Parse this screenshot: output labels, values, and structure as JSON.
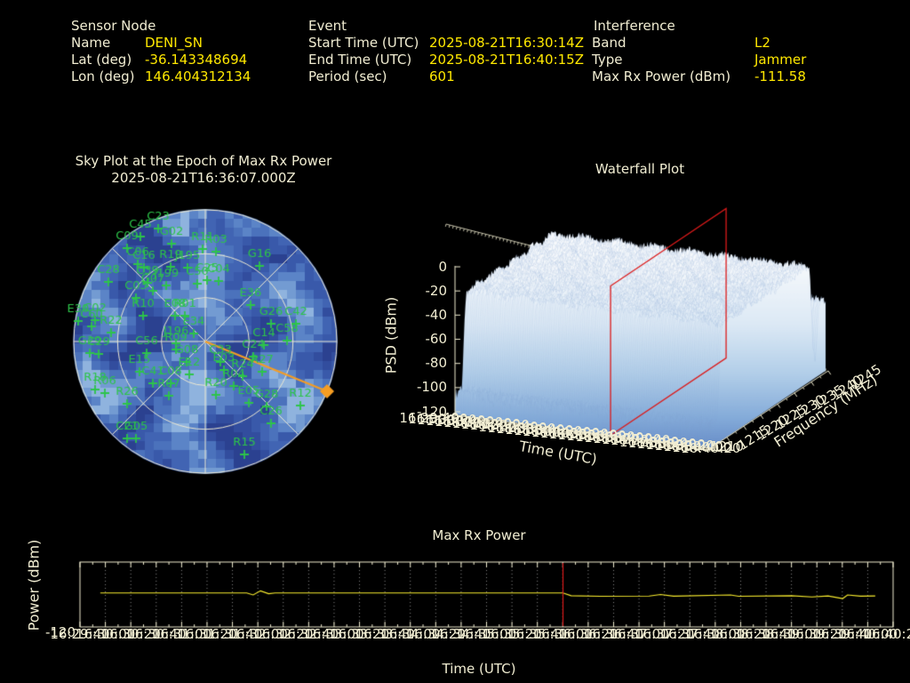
{
  "header": {
    "sensor": {
      "title": "Sensor Node",
      "rows": [
        {
          "label": "Name",
          "value": "DENI_SN"
        },
        {
          "label": "Lat (deg)",
          "value": "-36.143348694"
        },
        {
          "label": "Lon (deg)",
          "value": "146.404312134"
        }
      ]
    },
    "event": {
      "title": "Event",
      "rows": [
        {
          "label": "Start Time (UTC)",
          "value": "2025-08-21T16:30:14Z"
        },
        {
          "label": "End Time (UTC)",
          "value": "2025-08-21T16:40:15Z"
        },
        {
          "label": "Period (sec)",
          "value": "601"
        }
      ]
    },
    "interference": {
      "title": "Interference",
      "rows": [
        {
          "label": "Band",
          "value": "L2"
        },
        {
          "label": "Type",
          "value": "Jammer"
        },
        {
          "label": "Max Rx Power (dBm)",
          "value": "-111.58"
        }
      ]
    }
  },
  "colors": {
    "label_text": "#f1edd2",
    "value_text": "#ffe800",
    "satellite": "#2dc44a",
    "bearing": "#f59d23",
    "epoch_marker": "#dc1a1a",
    "power_line": "#fbee2f",
    "frame": "#f1edd0",
    "surface_high": "#ffffff",
    "surface_low": "#5d82c2"
  },
  "chart_data": [
    {
      "type": "polar-scatter",
      "title_line1": "Sky Plot at the Epoch of Max Rx Power",
      "title_line2": "2025-08-21T16:36:07.000Z",
      "elevation_rings_deg": [
        0,
        30,
        60
      ],
      "azimuth_spokes_deg": [
        0,
        45,
        90,
        135,
        180,
        225,
        270,
        315
      ],
      "interference_bearing": {
        "dx": 137,
        "dy": 56,
        "marker": "diamond"
      },
      "satellites": [
        {
          "id": "C23",
          "x": -53,
          "y": -140
        },
        {
          "id": "C45",
          "x": -73,
          "y": -131
        },
        {
          "id": "G02",
          "x": -38,
          "y": -123
        },
        {
          "id": "C09",
          "x": -88,
          "y": -118
        },
        {
          "id": "R11",
          "x": -3,
          "y": -117
        },
        {
          "id": "R03",
          "x": 12,
          "y": -114
        },
        {
          "id": "C06",
          "x": -76,
          "y": -100
        },
        {
          "id": "C16",
          "x": -69,
          "y": -96
        },
        {
          "id": "R19",
          "x": -39,
          "y": -97
        },
        {
          "id": "J195",
          "x": -20,
          "y": -96
        },
        {
          "id": "G16",
          "x": 61,
          "y": -98
        },
        {
          "id": "C28",
          "x": -109,
          "y": -80
        },
        {
          "id": "C39",
          "x": -65,
          "y": -79
        },
        {
          "id": "J199",
          "x": -44,
          "y": -76
        },
        {
          "id": "C50",
          "x": -9,
          "y": -78
        },
        {
          "id": "C25",
          "x": 2,
          "y": -82
        },
        {
          "id": "C04",
          "x": 15,
          "y": -81
        },
        {
          "id": "G07",
          "x": -59,
          "y": -70
        },
        {
          "id": "C03",
          "x": -78,
          "y": -62
        },
        {
          "id": "E36",
          "x": 51,
          "y": -54
        },
        {
          "id": "R10",
          "x": -70,
          "y": -42
        },
        {
          "id": "E08",
          "x": -34,
          "y": -42
        },
        {
          "id": "R01",
          "x": -23,
          "y": -42
        },
        {
          "id": "E30",
          "x": -143,
          "y": -36
        },
        {
          "id": "C02",
          "x": -124,
          "y": -37
        },
        {
          "id": "C60",
          "x": -128,
          "y": -30
        },
        {
          "id": "G26",
          "x": 74,
          "y": -33
        },
        {
          "id": "C42",
          "x": 102,
          "y": -33
        },
        {
          "id": "R22",
          "x": -106,
          "y": -23
        },
        {
          "id": "E34",
          "x": -13,
          "y": -22
        },
        {
          "id": "C58",
          "x": 92,
          "y": -14
        },
        {
          "id": "C14",
          "x": 66,
          "y": -9
        },
        {
          "id": "J196",
          "x": -33,
          "y": -11
        },
        {
          "id": "R09",
          "x": -33,
          "y": -4
        },
        {
          "id": "G29",
          "x": -130,
          "y": 0
        },
        {
          "id": "C29",
          "x": -120,
          "y": 1
        },
        {
          "id": "C56",
          "x": -66,
          "y": 0
        },
        {
          "id": "C24",
          "x": 54,
          "y": 4
        },
        {
          "id": "G08",
          "x": -21,
          "y": 10
        },
        {
          "id": "C33",
          "x": 17,
          "y": 10
        },
        {
          "id": "E03",
          "x": 21,
          "y": 19
        },
        {
          "id": "R27",
          "x": 64,
          "y": 21
        },
        {
          "id": "E15",
          "x": -74,
          "y": 21
        },
        {
          "id": "E12",
          "x": -18,
          "y": 24
        },
        {
          "id": "R24",
          "x": 42,
          "y": 26
        },
        {
          "id": "C41",
          "x": -59,
          "y": 34
        },
        {
          "id": "C08",
          "x": -39,
          "y": 34
        },
        {
          "id": "R04",
          "x": 32,
          "y": 37
        },
        {
          "id": "R18",
          "x": -124,
          "y": 41
        },
        {
          "id": "R06",
          "x": -113,
          "y": 45
        },
        {
          "id": "R07",
          "x": -41,
          "y": 48
        },
        {
          "id": "R20",
          "x": 12,
          "y": 47
        },
        {
          "id": "E05",
          "x": 49,
          "y": 56
        },
        {
          "id": "G28",
          "x": 69,
          "y": 60
        },
        {
          "id": "R26",
          "x": -88,
          "y": 57
        },
        {
          "id": "R12",
          "x": 107,
          "y": 59
        },
        {
          "id": "C26",
          "x": 74,
          "y": 79
        },
        {
          "id": "C21",
          "x": -88,
          "y": 96
        },
        {
          "id": "G05",
          "x": -78,
          "y": 96
        },
        {
          "id": "R15",
          "x": 44,
          "y": 114
        }
      ]
    },
    {
      "type": "3d-surface",
      "title": "Waterfall Plot",
      "xlabel": "Time (UTC)",
      "ylabel": "Frequency (MHz)",
      "zlabel": "PSD (dBm)",
      "psd_ticks": [
        "0",
        "-20",
        "-40",
        "-60",
        "-80",
        "-100",
        "-120"
      ],
      "freq_ticks": [
        "1215",
        "1220",
        "1225",
        "1230",
        "1235",
        "1240",
        "1245"
      ],
      "freq_tick_front": "1210",
      "freq_range_mhz": [
        1210,
        1245
      ],
      "psd_range_dbm": [
        -120,
        0
      ],
      "time_ticks": [
        "16:29:40",
        "16:30:00",
        "16:30:20",
        "16:30:40",
        "16:31:00",
        "16:31:20",
        "16:31:40",
        "16:32:00",
        "16:32:20",
        "16:32:40",
        "16:33:00",
        "16:33:20",
        "16:33:40",
        "16:34:00",
        "16:34:20",
        "16:34:40",
        "16:35:00",
        "16:35:20",
        "16:35:40",
        "16:36:00",
        "16:36:20",
        "16:36:40",
        "16:37:00",
        "16:37:20",
        "16:37:40",
        "16:38:00",
        "16:38:20",
        "16:38:40",
        "16:39:00",
        "16:39:20",
        "16:39:40",
        "16:40:00",
        "16:40:20"
      ],
      "surface": {
        "noise_floor_dbm": -104,
        "plateau_dbm": -27,
        "plateau_band_mhz": [
          1213.5,
          1240.5
        ],
        "shelf_dbm": -63,
        "shelf_band_mhz": [
          1242,
          1245
        ]
      },
      "epoch_slice": {
        "time": "16:36:07",
        "time_frac": 0.61
      }
    },
    {
      "type": "line",
      "title": "Max Rx Power",
      "xlabel": "Time (UTC)",
      "ylabel": "Power (dBm)",
      "y_tick_label": "-120",
      "ylim": [
        -120,
        -104
      ],
      "x_ticks": [
        "16:29:40",
        "16:30:00",
        "16:30:20",
        "16:30:40",
        "16:31:00",
        "16:31:20",
        "16:31:40",
        "16:32:00",
        "16:32:20",
        "16:32:40",
        "16:33:00",
        "16:33:20",
        "16:33:40",
        "16:34:00",
        "16:34:20",
        "16:34:40",
        "16:35:00",
        "16:35:20",
        "16:35:40",
        "16:36:00",
        "16:36:20",
        "16:36:40",
        "16:37:00",
        "16:37:20",
        "16:37:40",
        "16:38:00",
        "16:38:20",
        "16:38:40",
        "16:39:00",
        "16:39:20",
        "16:39:40",
        "16:40:00",
        "16:40:20"
      ],
      "epoch_line_frac": 0.594,
      "series": [
        {
          "name": "Max Rx Power (dBm)",
          "points": [
            [
              0.025,
              -111.6
            ],
            [
              0.205,
              -111.6
            ],
            [
              0.213,
              -112.1
            ],
            [
              0.222,
              -111.1
            ],
            [
              0.232,
              -111.8
            ],
            [
              0.24,
              -111.6
            ],
            [
              0.594,
              -111.6
            ],
            [
              0.604,
              -112.3
            ],
            [
              0.64,
              -112.45
            ],
            [
              0.7,
              -112.4
            ],
            [
              0.714,
              -112.0
            ],
            [
              0.73,
              -112.4
            ],
            [
              0.8,
              -112.1
            ],
            [
              0.81,
              -112.45
            ],
            [
              0.875,
              -112.3
            ],
            [
              0.9,
              -112.6
            ],
            [
              0.92,
              -112.35
            ],
            [
              0.938,
              -113.0
            ],
            [
              0.944,
              -112.1
            ],
            [
              0.96,
              -112.4
            ],
            [
              0.978,
              -112.35
            ]
          ]
        }
      ]
    }
  ]
}
